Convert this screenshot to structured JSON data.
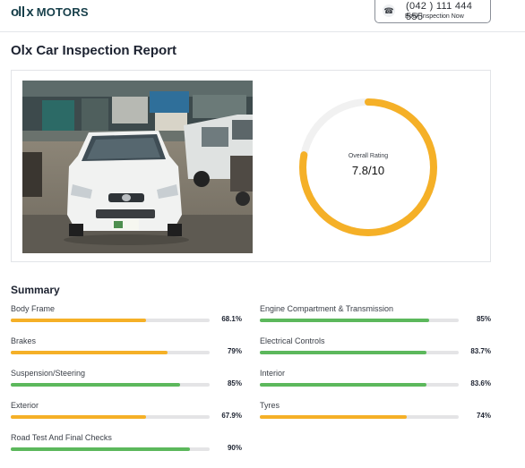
{
  "header": {
    "brand": "MOTORS",
    "phone": "(042 ) 111 444 555",
    "book_label": "Book Inspection Now"
  },
  "title": "Olx Car Inspection Report",
  "rating": {
    "label": "Overall Rating",
    "value_text": "7.8/10",
    "fraction": 0.78,
    "color": "#f5b027"
  },
  "summary": {
    "title": "Summary",
    "colors": {
      "green": "#5cb85c",
      "orange": "#f5b027"
    },
    "items": [
      {
        "name": "Body Frame",
        "percent": "68.1%",
        "value": 68.1,
        "color": "orange"
      },
      {
        "name": "Engine Compartment & Transmission",
        "percent": "85%",
        "value": 85,
        "color": "green"
      },
      {
        "name": "Brakes",
        "percent": "79%",
        "value": 79,
        "color": "orange"
      },
      {
        "name": "Electrical Controls",
        "percent": "83.7%",
        "value": 83.7,
        "color": "green"
      },
      {
        "name": "Suspension/Steering",
        "percent": "85%",
        "value": 85,
        "color": "green"
      },
      {
        "name": "Interior",
        "percent": "83.6%",
        "value": 83.6,
        "color": "green"
      },
      {
        "name": "Exterior",
        "percent": "67.9%",
        "value": 67.9,
        "color": "orange"
      },
      {
        "name": "Tyres",
        "percent": "74%",
        "value": 74,
        "color": "orange"
      },
      {
        "name": "Road Test And Final Checks",
        "percent": "90%",
        "value": 90,
        "color": "green"
      }
    ]
  }
}
